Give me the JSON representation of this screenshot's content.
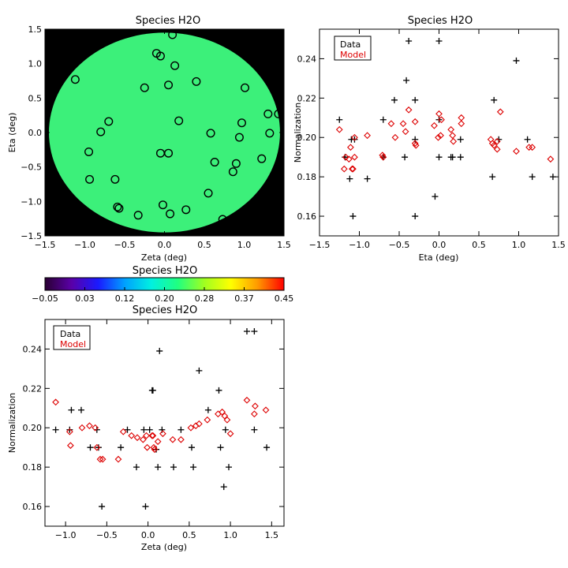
{
  "chart_data": [
    {
      "id": "map",
      "type": "heatmap",
      "title": "Species H2O",
      "xlabel": "Zeta (deg)",
      "ylabel": "Eta (deg)",
      "xlim": [
        -1.5,
        1.5
      ],
      "ylim": [
        -1.5,
        1.5
      ],
      "x_ticks": [
        -1.5,
        -1.0,
        -0.5,
        0.0,
        0.5,
        1.0,
        1.5
      ],
      "y_ticks": [
        -1.5,
        -1.0,
        -0.5,
        0.0,
        0.5,
        1.0,
        1.5
      ],
      "x_tick_labels": [
        "−1.5",
        "−1.0",
        "−0.5",
        "0.0",
        "0.5",
        "1.0",
        "1.5"
      ],
      "y_tick_labels": [
        "−1.5",
        "−1.0",
        "−0.5",
        "0.0",
        "0.5",
        "1.0",
        "1.5"
      ],
      "field_value": 0.19,
      "field_color": "#3cf07a",
      "background_color": "#000000",
      "circle_radius_deg": 1.45,
      "points": [
        {
          "x": 0.1,
          "y": 1.42
        },
        {
          "x": -0.1,
          "y": 1.15
        },
        {
          "x": -0.05,
          "y": 1.11
        },
        {
          "x": 0.13,
          "y": 0.97
        },
        {
          "x": -1.12,
          "y": 0.77
        },
        {
          "x": 0.4,
          "y": 0.74
        },
        {
          "x": 0.05,
          "y": 0.69
        },
        {
          "x": -0.25,
          "y": 0.65
        },
        {
          "x": 1.01,
          "y": 0.65
        },
        {
          "x": 1.3,
          "y": 0.27
        },
        {
          "x": 1.43,
          "y": 0.27
        },
        {
          "x": 0.18,
          "y": 0.17
        },
        {
          "x": -0.7,
          "y": 0.16
        },
        {
          "x": 0.97,
          "y": 0.14
        },
        {
          "x": -0.8,
          "y": 0.01
        },
        {
          "x": 0.58,
          "y": -0.01
        },
        {
          "x": 1.32,
          "y": -0.01
        },
        {
          "x": 0.94,
          "y": -0.07
        },
        {
          "x": -0.95,
          "y": -0.28
        },
        {
          "x": -0.05,
          "y": -0.3
        },
        {
          "x": 0.05,
          "y": -0.3
        },
        {
          "x": 1.22,
          "y": -0.38
        },
        {
          "x": 0.63,
          "y": -0.43
        },
        {
          "x": 0.9,
          "y": -0.45
        },
        {
          "x": 0.86,
          "y": -0.57
        },
        {
          "x": -0.94,
          "y": -0.68
        },
        {
          "x": -0.62,
          "y": -0.68
        },
        {
          "x": 0.55,
          "y": -0.88
        },
        {
          "x": -0.02,
          "y": -1.05
        },
        {
          "x": -0.59,
          "y": -1.08
        },
        {
          "x": -0.57,
          "y": -1.1
        },
        {
          "x": 0.27,
          "y": -1.12
        },
        {
          "x": 0.07,
          "y": -1.18
        },
        {
          "x": -0.33,
          "y": -1.2
        },
        {
          "x": 0.73,
          "y": -1.26
        }
      ]
    },
    {
      "id": "colorbar",
      "type": "colorbar",
      "title": "Species H2O",
      "range": [
        -0.05,
        0.45
      ],
      "tick_labels": [
        "−0.05",
        "0.03",
        "0.12",
        "0.20",
        "0.28",
        "0.37",
        "0.45"
      ],
      "colors": [
        "#2a0033",
        "#5a00a8",
        "#1a1aff",
        "#00a0ff",
        "#00f0e0",
        "#20ff80",
        "#a0ff20",
        "#ffff00",
        "#ff9a00",
        "#ff0000"
      ]
    },
    {
      "id": "eta",
      "type": "scatter",
      "title": "Species H2O",
      "xlabel": "Eta (deg)",
      "ylabel": "Normalization",
      "xlim": [
        -1.5,
        1.5
      ],
      "ylim": [
        0.15,
        0.255
      ],
      "x_ticks": [
        -1.5,
        -1.0,
        -0.5,
        0.0,
        0.5,
        1.0,
        1.5
      ],
      "x_tick_labels": [
        "−1.5",
        "−1.0",
        "−0.5",
        "0.0",
        "0.5",
        "1.0",
        "1.5"
      ],
      "y_ticks": [
        0.16,
        0.18,
        0.2,
        0.22,
        0.24
      ],
      "y_tick_labels": [
        "0.16",
        "0.18",
        "0.20",
        "0.22",
        "0.24"
      ],
      "legend": [
        "Data",
        "Model"
      ],
      "legend_position": "top-left",
      "series": [
        {
          "name": "Data",
          "marker": "plus",
          "color": "#000000",
          "points": [
            [
              -1.25,
              0.209
            ],
            [
              -1.18,
              0.19
            ],
            [
              -1.12,
              0.179
            ],
            [
              -1.08,
              0.16
            ],
            [
              -1.06,
              0.199
            ],
            [
              -1.1,
              0.199
            ],
            [
              -0.9,
              0.179
            ],
            [
              -0.7,
              0.209
            ],
            [
              -0.7,
              0.19
            ],
            [
              -0.56,
              0.219
            ],
            [
              -0.43,
              0.19
            ],
            [
              -0.41,
              0.229
            ],
            [
              -0.38,
              0.249
            ],
            [
              -0.3,
              0.219
            ],
            [
              -0.3,
              0.199
            ],
            [
              -0.3,
              0.16
            ],
            [
              -0.05,
              0.17
            ],
            [
              0.0,
              0.249
            ],
            [
              0.0,
              0.209
            ],
            [
              0.0,
              0.19
            ],
            [
              0.15,
              0.19
            ],
            [
              0.17,
              0.19
            ],
            [
              0.27,
              0.199
            ],
            [
              0.27,
              0.19
            ],
            [
              0.69,
              0.219
            ],
            [
              0.67,
              0.18
            ],
            [
              0.75,
              0.199
            ],
            [
              0.97,
              0.239
            ],
            [
              1.11,
              0.199
            ],
            [
              1.17,
              0.18
            ],
            [
              1.43,
              0.18
            ]
          ]
        },
        {
          "name": "Model",
          "marker": "diamond",
          "color": "#dd0000",
          "points": [
            [
              -1.25,
              0.204
            ],
            [
              -1.19,
              0.184
            ],
            [
              -1.17,
              0.19
            ],
            [
              -1.13,
              0.189
            ],
            [
              -1.11,
              0.195
            ],
            [
              -1.09,
              0.184
            ],
            [
              -1.08,
              0.184
            ],
            [
              -1.06,
              0.2
            ],
            [
              -1.06,
              0.19
            ],
            [
              -0.9,
              0.201
            ],
            [
              -0.71,
              0.191
            ],
            [
              -0.7,
              0.19
            ],
            [
              -0.6,
              0.207
            ],
            [
              -0.55,
              0.2
            ],
            [
              -0.45,
              0.207
            ],
            [
              -0.42,
              0.203
            ],
            [
              -0.38,
              0.214
            ],
            [
              -0.3,
              0.208
            ],
            [
              -0.3,
              0.197
            ],
            [
              -0.29,
              0.196
            ],
            [
              -0.06,
              0.206
            ],
            [
              -0.01,
              0.2
            ],
            [
              0.0,
              0.212
            ],
            [
              0.02,
              0.201
            ],
            [
              0.03,
              0.209
            ],
            [
              0.15,
              0.204
            ],
            [
              0.17,
              0.201
            ],
            [
              0.18,
              0.198
            ],
            [
              0.28,
              0.21
            ],
            [
              0.28,
              0.207
            ],
            [
              0.65,
              0.199
            ],
            [
              0.67,
              0.197
            ],
            [
              0.69,
              0.196
            ],
            [
              0.73,
              0.198
            ],
            [
              0.73,
              0.194
            ],
            [
              0.77,
              0.213
            ],
            [
              0.97,
              0.193
            ],
            [
              1.13,
              0.195
            ],
            [
              1.17,
              0.195
            ],
            [
              1.4,
              0.189
            ]
          ]
        }
      ]
    },
    {
      "id": "zeta",
      "type": "scatter",
      "title": "Species H2O",
      "xlabel": "Zeta (deg)",
      "ylabel": "Normalization",
      "xlim": [
        -1.25,
        1.65
      ],
      "ylim": [
        0.15,
        0.255
      ],
      "x_ticks": [
        -1.0,
        -0.5,
        0.0,
        0.5,
        1.0,
        1.5
      ],
      "x_tick_labels": [
        "−1.0",
        "−0.5",
        "0.0",
        "0.5",
        "1.0",
        "1.5"
      ],
      "y_ticks": [
        0.16,
        0.18,
        0.2,
        0.22,
        0.24
      ],
      "y_tick_labels": [
        "0.16",
        "0.18",
        "0.20",
        "0.22",
        "0.24"
      ],
      "legend": [
        "Data",
        "Model"
      ],
      "legend_position": "top-left",
      "series": [
        {
          "name": "Data",
          "marker": "plus",
          "color": "#000000",
          "points": [
            [
              -1.12,
              0.199
            ],
            [
              -0.95,
              0.199
            ],
            [
              -0.93,
              0.209
            ],
            [
              -0.81,
              0.209
            ],
            [
              -0.7,
              0.19
            ],
            [
              -0.62,
              0.199
            ],
            [
              -0.6,
              0.19
            ],
            [
              -0.56,
              0.16
            ],
            [
              -0.33,
              0.19
            ],
            [
              -0.25,
              0.199
            ],
            [
              -0.14,
              0.18
            ],
            [
              -0.05,
              0.199
            ],
            [
              -0.03,
              0.16
            ],
            [
              0.02,
              0.199
            ],
            [
              0.05,
              0.219
            ],
            [
              0.06,
              0.219
            ],
            [
              0.1,
              0.189
            ],
            [
              0.12,
              0.18
            ],
            [
              0.14,
              0.239
            ],
            [
              0.17,
              0.199
            ],
            [
              0.31,
              0.18
            ],
            [
              0.4,
              0.199
            ],
            [
              0.53,
              0.19
            ],
            [
              0.55,
              0.18
            ],
            [
              0.62,
              0.229
            ],
            [
              0.73,
              0.209
            ],
            [
              0.86,
              0.219
            ],
            [
              0.88,
              0.19
            ],
            [
              0.92,
              0.17
            ],
            [
              0.94,
              0.199
            ],
            [
              0.98,
              0.18
            ],
            [
              1.2,
              0.249
            ],
            [
              1.29,
              0.249
            ],
            [
              1.29,
              0.199
            ],
            [
              1.44,
              0.19
            ]
          ]
        },
        {
          "name": "Model",
          "marker": "diamond",
          "color": "#dd0000",
          "points": [
            [
              -1.12,
              0.213
            ],
            [
              -0.95,
              0.198
            ],
            [
              -0.94,
              0.191
            ],
            [
              -0.8,
              0.2
            ],
            [
              -0.71,
              0.201
            ],
            [
              -0.64,
              0.2
            ],
            [
              -0.62,
              0.19
            ],
            [
              -0.58,
              0.184
            ],
            [
              -0.55,
              0.184
            ],
            [
              -0.36,
              0.184
            ],
            [
              -0.3,
              0.198
            ],
            [
              -0.2,
              0.196
            ],
            [
              -0.13,
              0.195
            ],
            [
              -0.06,
              0.194
            ],
            [
              -0.02,
              0.196
            ],
            [
              -0.01,
              0.19
            ],
            [
              0.05,
              0.196
            ],
            [
              0.06,
              0.196
            ],
            [
              0.07,
              0.19
            ],
            [
              0.08,
              0.189
            ],
            [
              0.12,
              0.193
            ],
            [
              0.18,
              0.197
            ],
            [
              0.3,
              0.194
            ],
            [
              0.4,
              0.194
            ],
            [
              0.52,
              0.2
            ],
            [
              0.58,
              0.201
            ],
            [
              0.62,
              0.202
            ],
            [
              0.72,
              0.204
            ],
            [
              0.85,
              0.207
            ],
            [
              0.9,
              0.208
            ],
            [
              0.93,
              0.206
            ],
            [
              0.96,
              0.204
            ],
            [
              1.0,
              0.197
            ],
            [
              1.2,
              0.214
            ],
            [
              1.29,
              0.207
            ],
            [
              1.3,
              0.211
            ],
            [
              1.43,
              0.209
            ]
          ]
        }
      ]
    }
  ]
}
